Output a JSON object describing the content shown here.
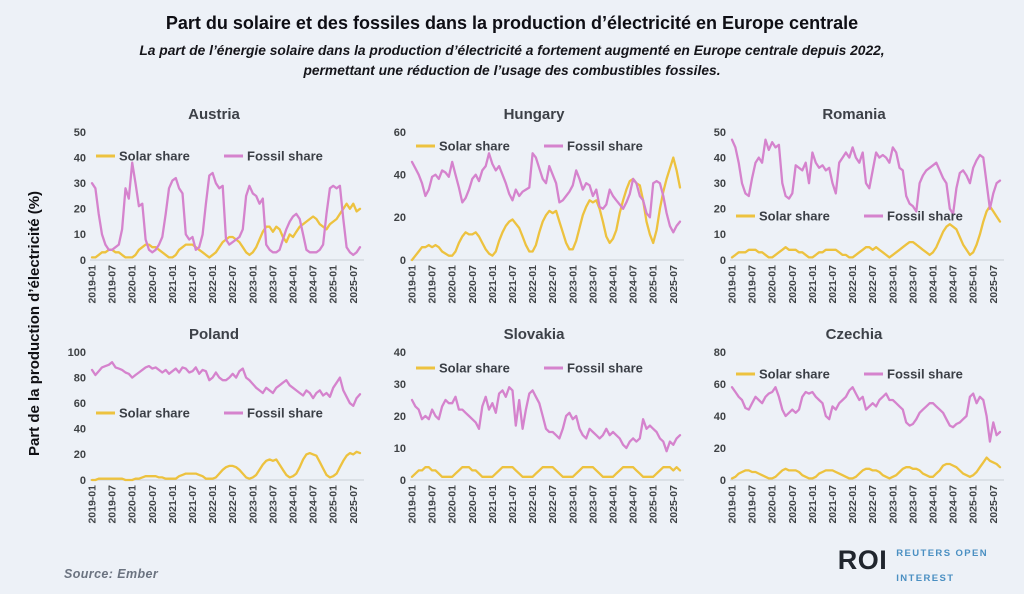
{
  "page": {
    "title": "Part du solaire et des fossiles dans la production d’électricité en Europe centrale",
    "subtitle_line1": "La part de l’énergie solaire dans la production d’électricité a fortement augmenté en Europe centrale depuis 2022,",
    "subtitle_line2": "permettant une réduction de l’usage des combustibles fossiles.",
    "y_axis_label": "Part de la production d’électricité (%)",
    "source": "Source: Ember",
    "logo": {
      "abbr": "ROI",
      "line1": "REUTERS OPEN",
      "line2": "INTEREST"
    }
  },
  "colors": {
    "background": "#edf1f7",
    "solar": "#edc23f",
    "fossil": "#d583cd",
    "tick_text": "#3f4245",
    "legend_text": "#3b3f46",
    "axis_line": "#c9ced6",
    "logo_dark": "#20252d",
    "logo_blue": "#4a8fc2"
  },
  "n_points": 81,
  "x_ticks": [
    "2019-01",
    "2019-07",
    "2020-01",
    "2020-07",
    "2021-01",
    "2021-07",
    "2022-01",
    "2022-07",
    "2023-01",
    "2023-07",
    "2024-01",
    "2024-07",
    "2025-01",
    "2025-07"
  ],
  "chart_data": [
    {
      "type": "line",
      "country": "Austria",
      "x_start": "2019-01",
      "x_end": "2025-09",
      "ylim": [
        0,
        50
      ],
      "yticks": [
        0,
        10,
        20,
        30,
        40,
        50
      ],
      "grid": false,
      "legend_position": "top-inside",
      "legend_y": 24,
      "series": [
        {
          "name": "Solar share",
          "color_key": "solar",
          "values": [
            1,
            1,
            2,
            3,
            3,
            4,
            4,
            3,
            3,
            2,
            1,
            1,
            1,
            2,
            4,
            5,
            6,
            6,
            5,
            5,
            4,
            3,
            2,
            1,
            1,
            2,
            4,
            5,
            6,
            6,
            6,
            5,
            4,
            3,
            2,
            1,
            2,
            3,
            5,
            7,
            8,
            9,
            9,
            8,
            7,
            5,
            3,
            2,
            3,
            5,
            8,
            11,
            13,
            13,
            11,
            13,
            12,
            9,
            7,
            10,
            9,
            11,
            13,
            14,
            15,
            16,
            17,
            16,
            14,
            13,
            12,
            14,
            15,
            16,
            18,
            20,
            22,
            20,
            22,
            19,
            20
          ]
        },
        {
          "name": "Fossil share",
          "color_key": "fossil",
          "values": [
            30,
            28,
            18,
            10,
            6,
            4,
            4,
            5,
            6,
            12,
            28,
            24,
            38,
            30,
            21,
            22,
            8,
            4,
            3,
            4,
            6,
            9,
            18,
            28,
            31,
            32,
            28,
            26,
            10,
            8,
            9,
            4,
            5,
            10,
            22,
            33,
            34,
            30,
            28,
            29,
            8,
            6,
            7,
            8,
            9,
            12,
            25,
            29,
            26,
            25,
            22,
            24,
            6,
            4,
            3,
            3,
            4,
            8,
            12,
            15,
            17,
            18,
            16,
            10,
            4,
            3,
            3,
            3,
            4,
            6,
            18,
            28,
            29,
            28,
            29,
            16,
            5,
            3,
            2,
            3,
            5
          ]
        }
      ]
    },
    {
      "type": "line",
      "country": "Hungary",
      "x_start": "2019-01",
      "x_end": "2025-09",
      "ylim": [
        0,
        60
      ],
      "yticks": [
        0,
        20,
        40,
        60
      ],
      "grid": false,
      "legend_position": "top-inside",
      "legend_y": 14,
      "series": [
        {
          "name": "Solar share",
          "color_key": "solar",
          "values": [
            0,
            2,
            4,
            6,
            6,
            7,
            6,
            7,
            6,
            4,
            3,
            2,
            2,
            4,
            8,
            11,
            13,
            12,
            12,
            13,
            11,
            8,
            5,
            3,
            2,
            4,
            9,
            13,
            16,
            18,
            19,
            17,
            15,
            11,
            7,
            4,
            4,
            7,
            13,
            18,
            21,
            23,
            22,
            23,
            18,
            13,
            8,
            5,
            5,
            9,
            15,
            21,
            25,
            28,
            27,
            28,
            24,
            18,
            11,
            8,
            10,
            14,
            22,
            28,
            33,
            37,
            38,
            36,
            35,
            28,
            18,
            12,
            8,
            14,
            24,
            32,
            38,
            43,
            48,
            42,
            34
          ]
        },
        {
          "name": "Fossil share",
          "color_key": "fossil",
          "values": [
            46,
            43,
            40,
            36,
            30,
            33,
            39,
            40,
            38,
            42,
            41,
            39,
            46,
            40,
            34,
            27,
            29,
            33,
            38,
            40,
            37,
            42,
            44,
            50,
            45,
            42,
            44,
            40,
            36,
            31,
            28,
            33,
            30,
            32,
            33,
            34,
            50,
            48,
            43,
            38,
            36,
            44,
            40,
            36,
            27,
            28,
            30,
            32,
            35,
            42,
            38,
            33,
            36,
            35,
            30,
            33,
            25,
            24,
            26,
            33,
            30,
            28,
            26,
            24,
            27,
            31,
            38,
            36,
            30,
            28,
            22,
            20,
            36,
            37,
            36,
            30,
            22,
            16,
            13,
            16,
            18
          ]
        }
      ]
    },
    {
      "type": "line",
      "country": "Romania",
      "x_start": "2019-01",
      "x_end": "2025-09",
      "ylim": [
        0,
        50
      ],
      "yticks": [
        0,
        10,
        20,
        30,
        40,
        50
      ],
      "grid": false,
      "legend_position": "middle-inside",
      "legend_y": 84,
      "series": [
        {
          "name": "Solar share",
          "color_key": "solar",
          "values": [
            1,
            2,
            3,
            3,
            3,
            4,
            4,
            4,
            3,
            3,
            2,
            1,
            1,
            2,
            3,
            4,
            5,
            4,
            4,
            4,
            3,
            3,
            2,
            1,
            1,
            2,
            3,
            3,
            4,
            4,
            4,
            4,
            3,
            2,
            2,
            1,
            1,
            2,
            3,
            4,
            5,
            5,
            4,
            5,
            4,
            3,
            2,
            1,
            2,
            3,
            4,
            5,
            6,
            7,
            7,
            6,
            5,
            4,
            3,
            2,
            3,
            5,
            8,
            11,
            13,
            14,
            13,
            12,
            9,
            6,
            4,
            2,
            3,
            6,
            10,
            15,
            19,
            21,
            19,
            17,
            15
          ]
        },
        {
          "name": "Fossil share",
          "color_key": "fossil",
          "values": [
            47,
            44,
            38,
            30,
            26,
            25,
            32,
            38,
            40,
            38,
            47,
            43,
            46,
            44,
            45,
            30,
            25,
            24,
            26,
            37,
            36,
            35,
            38,
            30,
            42,
            38,
            36,
            37,
            35,
            36,
            30,
            26,
            38,
            40,
            42,
            40,
            44,
            40,
            38,
            42,
            30,
            28,
            35,
            42,
            40,
            41,
            40,
            38,
            44,
            42,
            36,
            35,
            25,
            22,
            21,
            19,
            30,
            33,
            35,
            36,
            37,
            38,
            35,
            32,
            30,
            20,
            18,
            28,
            34,
            35,
            33,
            30,
            36,
            39,
            41,
            40,
            30,
            20,
            26,
            30,
            31
          ]
        }
      ]
    },
    {
      "type": "line",
      "country": "Poland",
      "x_start": "2019-01",
      "x_end": "2025-09",
      "ylim": [
        0,
        100
      ],
      "yticks": [
        0,
        20,
        40,
        60,
        80,
        100
      ],
      "grid": false,
      "legend_position": "middle-inside",
      "legend_y": 61,
      "series": [
        {
          "name": "Solar share",
          "color_key": "solar",
          "values": [
            0,
            0,
            1,
            1,
            1,
            1,
            1,
            1,
            1,
            1,
            0,
            0,
            0,
            1,
            1,
            2,
            3,
            3,
            3,
            3,
            2,
            2,
            1,
            1,
            1,
            1,
            3,
            4,
            5,
            5,
            5,
            5,
            4,
            3,
            1,
            1,
            1,
            2,
            5,
            8,
            10,
            11,
            11,
            10,
            8,
            5,
            2,
            1,
            2,
            4,
            8,
            12,
            15,
            16,
            15,
            16,
            12,
            8,
            4,
            2,
            3,
            5,
            10,
            16,
            20,
            21,
            20,
            19,
            14,
            9,
            4,
            2,
            3,
            5,
            10,
            15,
            19,
            21,
            20,
            22,
            21
          ]
        },
        {
          "name": "Fossil share",
          "color_key": "fossil",
          "values": [
            86,
            82,
            85,
            88,
            89,
            90,
            92,
            88,
            87,
            86,
            84,
            83,
            80,
            82,
            84,
            86,
            88,
            89,
            87,
            88,
            86,
            84,
            86,
            83,
            85,
            87,
            84,
            88,
            87,
            84,
            85,
            88,
            83,
            86,
            85,
            78,
            80,
            84,
            80,
            78,
            78,
            80,
            83,
            80,
            85,
            87,
            80,
            78,
            75,
            72,
            70,
            68,
            72,
            70,
            68,
            72,
            74,
            76,
            78,
            74,
            72,
            70,
            68,
            66,
            70,
            68,
            64,
            68,
            70,
            66,
            68,
            65,
            72,
            76,
            80,
            70,
            65,
            60,
            58,
            64,
            67
          ]
        }
      ]
    },
    {
      "type": "line",
      "country": "Slovakia",
      "x_start": "2019-01",
      "x_end": "2025-09",
      "ylim": [
        0,
        40
      ],
      "yticks": [
        0,
        10,
        20,
        30,
        40
      ],
      "grid": false,
      "legend_position": "top-inside",
      "legend_y": 16,
      "series": [
        {
          "name": "Solar share",
          "color_key": "solar",
          "values": [
            1,
            2,
            3,
            3,
            4,
            4,
            3,
            3,
            2,
            1,
            1,
            1,
            1,
            2,
            3,
            4,
            4,
            4,
            3,
            3,
            2,
            1,
            1,
            1,
            1,
            2,
            3,
            4,
            4,
            4,
            4,
            3,
            2,
            1,
            1,
            1,
            1,
            2,
            3,
            4,
            4,
            4,
            4,
            3,
            2,
            1,
            1,
            1,
            1,
            2,
            3,
            4,
            4,
            4,
            4,
            3,
            2,
            1,
            1,
            1,
            1,
            2,
            3,
            4,
            4,
            4,
            4,
            3,
            2,
            1,
            1,
            1,
            1,
            2,
            3,
            4,
            4,
            4,
            3,
            4,
            3
          ]
        },
        {
          "name": "Fossil share",
          "color_key": "fossil",
          "values": [
            25,
            23,
            22,
            19,
            20,
            19,
            22,
            20,
            19,
            23,
            25,
            24,
            24,
            26,
            22,
            22,
            21,
            20,
            19,
            18,
            16,
            23,
            26,
            22,
            24,
            21,
            27,
            28,
            26,
            29,
            28,
            17,
            25,
            16,
            22,
            27,
            28,
            26,
            24,
            20,
            16,
            15,
            15,
            14,
            13,
            16,
            20,
            21,
            19,
            20,
            16,
            14,
            13,
            16,
            15,
            14,
            13,
            14,
            16,
            14,
            15,
            14,
            13,
            11,
            10,
            12,
            13,
            12,
            13,
            19,
            16,
            17,
            16,
            15,
            13,
            12,
            9,
            12,
            11,
            13,
            14
          ]
        }
      ]
    },
    {
      "type": "line",
      "country": "Czechia",
      "x_start": "2019-01",
      "x_end": "2025-09",
      "ylim": [
        0,
        80
      ],
      "yticks": [
        0,
        20,
        40,
        60,
        80
      ],
      "grid": false,
      "legend_position": "top-inside",
      "legend_y": 22,
      "series": [
        {
          "name": "Solar share",
          "color_key": "solar",
          "values": [
            1,
            2,
            4,
            5,
            6,
            6,
            5,
            5,
            4,
            3,
            2,
            1,
            1,
            2,
            4,
            6,
            7,
            6,
            6,
            6,
            5,
            3,
            2,
            1,
            1,
            2,
            4,
            5,
            6,
            6,
            6,
            5,
            4,
            3,
            2,
            1,
            1,
            2,
            4,
            6,
            7,
            7,
            6,
            6,
            5,
            3,
            2,
            1,
            2,
            3,
            5,
            7,
            8,
            8,
            7,
            7,
            6,
            4,
            3,
            2,
            2,
            4,
            6,
            9,
            10,
            10,
            9,
            8,
            6,
            4,
            3,
            2,
            3,
            5,
            8,
            11,
            14,
            12,
            11,
            10,
            8
          ]
        },
        {
          "name": "Fossil share",
          "color_key": "fossil",
          "values": [
            58,
            55,
            52,
            50,
            45,
            44,
            48,
            52,
            50,
            48,
            52,
            54,
            55,
            58,
            52,
            44,
            40,
            42,
            44,
            42,
            44,
            52,
            55,
            54,
            55,
            52,
            50,
            48,
            40,
            38,
            46,
            44,
            48,
            50,
            52,
            56,
            58,
            54,
            50,
            52,
            44,
            46,
            48,
            46,
            50,
            52,
            54,
            50,
            50,
            48,
            46,
            44,
            36,
            34,
            35,
            38,
            42,
            44,
            46,
            48,
            48,
            46,
            44,
            42,
            38,
            34,
            33,
            35,
            36,
            38,
            40,
            52,
            54,
            48,
            52,
            50,
            40,
            24,
            36,
            28,
            30
          ]
        }
      ]
    }
  ]
}
